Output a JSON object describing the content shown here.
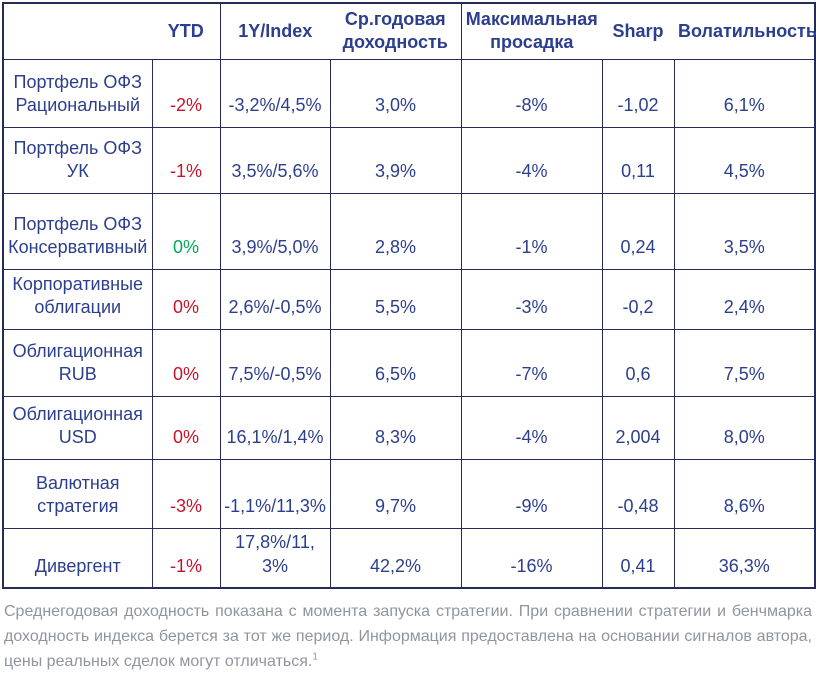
{
  "colors": {
    "red": "#C81228",
    "green": "#00A859",
    "navy_text": "#2C3E8E",
    "table_border": "#272B57",
    "footnote_gray": "#8F959E"
  },
  "table": {
    "columns": [
      "",
      "YTD",
      "1Y/Index",
      "Ср.годовая доходность",
      "Максимальная просадка",
      "Sharp",
      "Волатильность"
    ],
    "rows": [
      {
        "name": "Портфель ОФЗ Рациональный",
        "ytd": "-2%",
        "ytd_color": "red",
        "one_year_index": "-3,2%/4,5%",
        "avg_annual_return": "3,0%",
        "max_drawdown": "-8%",
        "sharp": "-1,02",
        "volatility": "6,1%"
      },
      {
        "name": "Портфель ОФЗ УК",
        "ytd": "-1%",
        "ytd_color": "red",
        "one_year_index": "3,5%/5,6%",
        "avg_annual_return": "3,9%",
        "max_drawdown": "-4%",
        "sharp": "0,11",
        "volatility": "4,5%"
      },
      {
        "name": "Портфель ОФЗ Консервативный",
        "ytd": "0%",
        "ytd_color": "green",
        "one_year_index": "3,9%/5,0%",
        "avg_annual_return": "2,8%",
        "max_drawdown": "-1%",
        "sharp": "0,24",
        "volatility": "3,5%"
      },
      {
        "name": "Корпоративные облигации",
        "ytd": "0%",
        "ytd_color": "red",
        "one_year_index": "2,6%/-0,5%",
        "avg_annual_return": "5,5%",
        "max_drawdown": "-3%",
        "sharp": "-0,2",
        "volatility": "2,4%"
      },
      {
        "name": "Облигационная RUB",
        "ytd": "0%",
        "ytd_color": "red",
        "one_year_index": "7,5%/-0,5%",
        "avg_annual_return": "6,5%",
        "max_drawdown": "-7%",
        "sharp": "0,6",
        "volatility": "7,5%"
      },
      {
        "name": "Облигационная USD",
        "ytd": "0%",
        "ytd_color": "red",
        "one_year_index": "16,1%/1,4%",
        "avg_annual_return": "8,3%",
        "max_drawdown": "-4%",
        "sharp": "2,004",
        "volatility": "8,0%"
      },
      {
        "name": "Валютная стратегия",
        "ytd": "-3%",
        "ytd_color": "red",
        "one_year_index": "-1,1%/11,3%",
        "avg_annual_return": "9,7%",
        "max_drawdown": "-9%",
        "sharp": "-0,48",
        "volatility": "8,6%"
      },
      {
        "name": "Дивергент",
        "ytd": "-1%",
        "ytd_color": "red",
        "one_year_index": "17,8%/11,3%",
        "avg_annual_return": "42,2%",
        "max_drawdown": "-16%",
        "sharp": "0,41",
        "volatility": "36,3%"
      }
    ]
  },
  "footnote": {
    "text": "Среднегодовая доходность показана с момента запуска стратегии. При сравнении стратегии и бенчмарка доходность индекса берется за тот же период. Информация предоставлена на основании сигналов автора, цены реальных сделок могут отличаться.",
    "superscript": "1"
  }
}
